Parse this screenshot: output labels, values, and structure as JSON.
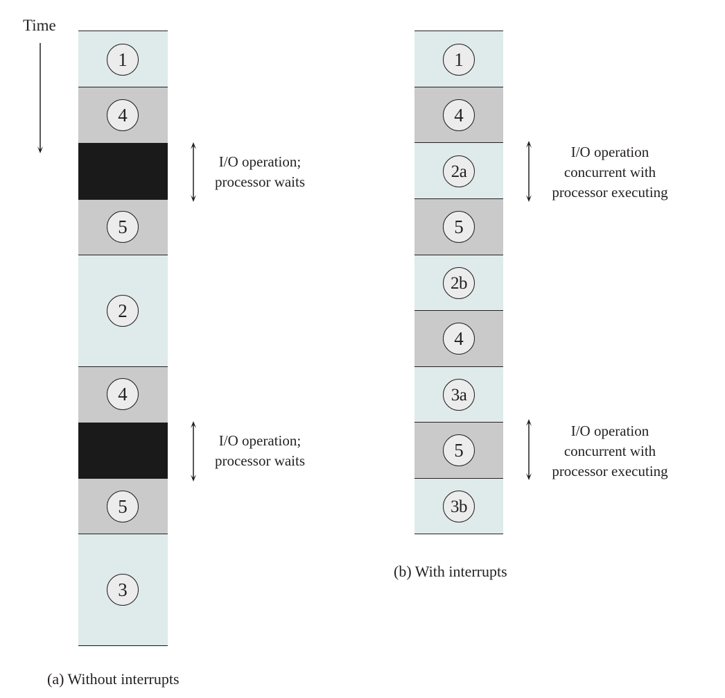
{
  "time_label": "Time",
  "panel_a": {
    "caption": "(a) Without interrupts",
    "segments": [
      {
        "label": "1",
        "fill": "light"
      },
      {
        "label": "4",
        "fill": "gray"
      },
      {
        "label": "",
        "fill": "black"
      },
      {
        "label": "5",
        "fill": "gray"
      },
      {
        "label": "2",
        "fill": "light"
      },
      {
        "label": "4",
        "fill": "gray"
      },
      {
        "label": "",
        "fill": "black"
      },
      {
        "label": "5",
        "fill": "gray"
      },
      {
        "label": "3",
        "fill": "light"
      }
    ],
    "notes": [
      {
        "line1": "I/O operation;",
        "line2": "processor waits"
      },
      {
        "line1": "I/O operation;",
        "line2": "processor waits"
      }
    ]
  },
  "panel_b": {
    "caption": "(b) With interrupts",
    "segments": [
      {
        "label": "1",
        "fill": "light"
      },
      {
        "label": "4",
        "fill": "gray"
      },
      {
        "label": "2a",
        "fill": "light"
      },
      {
        "label": "5",
        "fill": "gray"
      },
      {
        "label": "2b",
        "fill": "light"
      },
      {
        "label": "4",
        "fill": "gray"
      },
      {
        "label": "3a",
        "fill": "light"
      },
      {
        "label": "5",
        "fill": "gray"
      },
      {
        "label": "3b",
        "fill": "light"
      }
    ],
    "notes": [
      {
        "line1": "I/O operation",
        "line2": "concurrent with",
        "line3": "processor executing"
      },
      {
        "line1": "I/O operation",
        "line2": "concurrent with",
        "line3": "processor executing"
      }
    ]
  },
  "colors": {
    "light": "#deebea",
    "gray": "#cacaca",
    "black": "#1b1a1a",
    "ink": "#231f20"
  }
}
